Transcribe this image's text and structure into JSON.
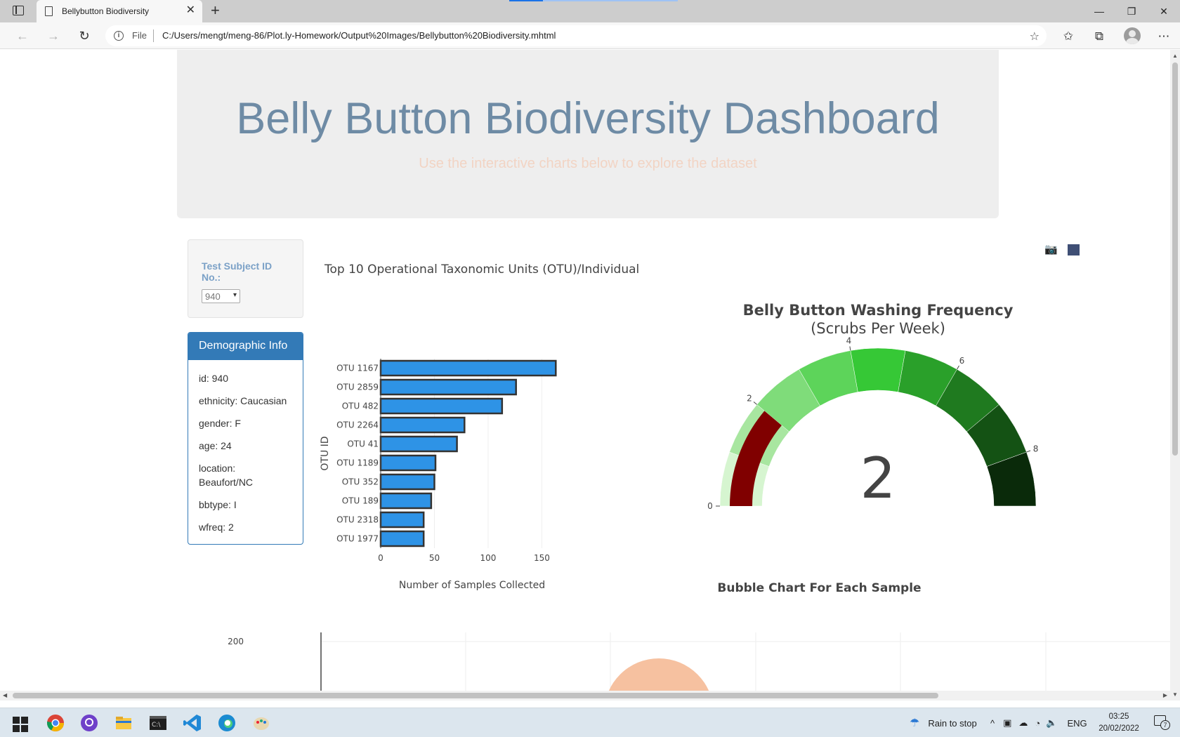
{
  "browser": {
    "tab_title": "Bellybutton Biodiversity",
    "scheme_label": "File",
    "url": "C:/Users/mengt/meng-86/Plot.ly-Homework/Output%20Images/Bellybutton%20Biodiversity.mhtml"
  },
  "header": {
    "title": "Belly Button Biodiversity Dashboard",
    "subtitle": "Use the interactive charts below to explore the dataset"
  },
  "selector": {
    "label": "Test Subject ID No.:",
    "selected": "940"
  },
  "demographics": {
    "heading": "Demographic Info",
    "lines": [
      "id: 940",
      "ethnicity: Caucasian",
      "gender: F",
      "age: 24",
      "location: Beaufort/NC",
      "bbtype: I",
      "wfreq: 2"
    ]
  },
  "bar_chart": {
    "title": "Top 10 Operational Taxonomic Units (OTU)/Individual",
    "ylabel": "OTU ID",
    "xlabel": "Number of Samples Collected"
  },
  "gauge": {
    "title": "Belly Button Washing Frequency",
    "subtitle": "(Scrubs Per Week)",
    "value_display": "2"
  },
  "bubble": {
    "title": "Bubble Chart For Each Sample"
  },
  "colors": {
    "bar_fill": "#2e93e6",
    "needle": "#800000",
    "header_text": "#6e8ba5",
    "panel_primary": "#337ab7"
  },
  "chart_data": [
    {
      "type": "bar",
      "orientation": "horizontal",
      "title": "Top 10 Operational Taxonomic Units (OTU)/Individual",
      "categories": [
        "OTU 1167",
        "OTU 2859",
        "OTU 482",
        "OTU 2264",
        "OTU 41",
        "OTU 1189",
        "OTU 352",
        "OTU 189",
        "OTU 2318",
        "OTU 1977"
      ],
      "values": [
        163,
        126,
        113,
        78,
        71,
        51,
        50,
        47,
        40,
        40
      ],
      "xlabel": "Number of Samples Collected",
      "ylabel": "OTU ID",
      "xticks": [
        "0",
        "50",
        "100",
        "150"
      ],
      "xlim": [
        0,
        170
      ],
      "grid": true
    },
    {
      "type": "gauge",
      "title": "Belly Button Washing Frequency",
      "subtitle": "(Scrubs Per Week)",
      "value": 2,
      "range": [
        0,
        9
      ],
      "ticks": [
        "0",
        "2",
        "4",
        "6",
        "8"
      ],
      "bands": [
        {
          "from": 0,
          "to": 1,
          "color": "#d6f5d0"
        },
        {
          "from": 1,
          "to": 2,
          "color": "#a8e6a0"
        },
        {
          "from": 2,
          "to": 3,
          "color": "#7fdc7a"
        },
        {
          "from": 3,
          "to": 4,
          "color": "#5dd45a"
        },
        {
          "from": 4,
          "to": 5,
          "color": "#36c836"
        },
        {
          "from": 5,
          "to": 6,
          "color": "#2aa02a"
        },
        {
          "from": 6,
          "to": 7,
          "color": "#1f7a1f"
        },
        {
          "from": 7,
          "to": 8,
          "color": "#145214"
        },
        {
          "from": 8,
          "to": 9,
          "color": "#0a2a0a"
        }
      ]
    },
    {
      "type": "scatter",
      "title": "Bubble Chart For Each Sample",
      "yticks": [
        "200"
      ],
      "visible_points": [
        {
          "color": "#f6c1a0"
        }
      ]
    }
  ],
  "taskbar": {
    "weather": "Rain to stop",
    "language": "ENG",
    "time": "03:25",
    "date": "20/02/2022",
    "notifications": "7"
  }
}
